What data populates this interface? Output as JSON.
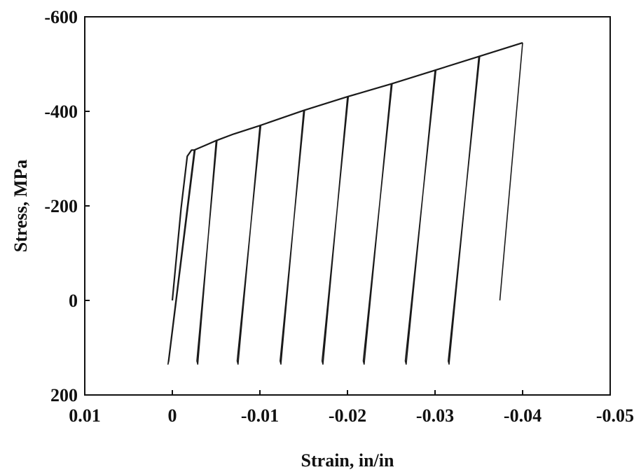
{
  "chart_data": {
    "type": "line",
    "title": "",
    "xlabel": "Strain, in/in",
    "ylabel": "Stress, MPa",
    "xlim": [
      0.01,
      -0.05
    ],
    "ylim": [
      200,
      -600
    ],
    "x_ticks": [
      "0.01",
      "0",
      "-0.01",
      "-0.02",
      "-0.03",
      "-0.04",
      "-0.05"
    ],
    "x_tick_values": [
      0.01,
      0,
      -0.01,
      -0.02,
      -0.03,
      -0.04,
      -0.05
    ],
    "y_ticks": [
      "-600",
      "-400",
      "-200",
      "0",
      "200"
    ],
    "y_tick_values": [
      -600,
      -400,
      -200,
      0,
      200
    ],
    "grid": false,
    "line_color": "#1a1a1a",
    "envelope": [
      [
        0.0,
        0
      ],
      [
        -0.001,
        -195
      ],
      [
        -0.0017,
        -305
      ],
      [
        -0.0022,
        -318
      ],
      [
        -0.0025,
        -318
      ],
      [
        -0.004,
        -330
      ],
      [
        -0.005,
        -338
      ],
      [
        -0.007,
        -352
      ],
      [
        -0.01,
        -370
      ],
      [
        -0.015,
        -402
      ],
      [
        -0.02,
        -431
      ],
      [
        -0.025,
        -458
      ],
      [
        -0.03,
        -487
      ],
      [
        -0.035,
        -516
      ],
      [
        -0.04,
        -545
      ]
    ],
    "series": [
      {
        "values": [
          [
            -0.0025,
            -318
          ],
          [
            0.0005,
            135
          ],
          [
            0.0004,
            128
          ],
          [
            -0.0026,
            -318
          ]
        ]
      },
      {
        "values": [
          [
            -0.005,
            -338
          ],
          [
            -0.0029,
            135
          ],
          [
            -0.0028,
            128
          ],
          [
            -0.0051,
            -338
          ]
        ]
      },
      {
        "values": [
          [
            -0.01,
            -370
          ],
          [
            -0.0075,
            135
          ],
          [
            -0.0074,
            128
          ],
          [
            -0.0101,
            -370
          ]
        ]
      },
      {
        "values": [
          [
            -0.015,
            -402
          ],
          [
            -0.0124,
            135
          ],
          [
            -0.0123,
            128
          ],
          [
            -0.0151,
            -402
          ]
        ]
      },
      {
        "values": [
          [
            -0.02,
            -431
          ],
          [
            -0.0172,
            135
          ],
          [
            -0.0171,
            128
          ],
          [
            -0.0201,
            -431
          ]
        ]
      },
      {
        "values": [
          [
            -0.025,
            -458
          ],
          [
            -0.0219,
            135
          ],
          [
            -0.0218,
            128
          ],
          [
            -0.0251,
            -458
          ]
        ]
      },
      {
        "values": [
          [
            -0.03,
            -487
          ],
          [
            -0.0267,
            135
          ],
          [
            -0.0266,
            128
          ],
          [
            -0.0301,
            -487
          ]
        ]
      },
      {
        "values": [
          [
            -0.035,
            -516
          ],
          [
            -0.0316,
            135
          ],
          [
            -0.0315,
            128
          ],
          [
            -0.0351,
            -516
          ]
        ]
      },
      {
        "values": [
          [
            -0.04,
            -545
          ],
          [
            -0.0374,
            0
          ]
        ]
      }
    ]
  }
}
